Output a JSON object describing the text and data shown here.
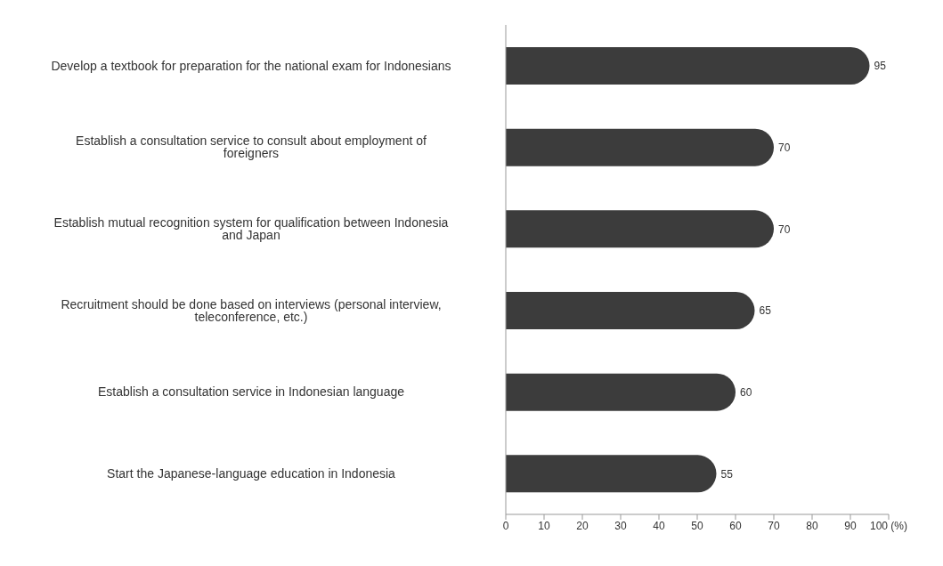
{
  "chart_data": {
    "type": "bar",
    "orientation": "horizontal",
    "categories": [
      "Develop a textbook for preparation for the national exam for Indonesians",
      "Establish a consultation service to consult about employment of foreigners",
      "Establish mutual recognition system for qualification between Indonesia and Japan",
      "Recruitment should be done based on interviews (personal interview, teleconference, etc.)",
      "Establish a consultation service in Indonesian language",
      "Start the Japanese-language education in Indonesia"
    ],
    "values": [
      95,
      70,
      70,
      65,
      60,
      55
    ],
    "color": "#3c3c3c",
    "xlim": [
      0,
      100
    ],
    "xticks": [
      0,
      10,
      20,
      30,
      40,
      50,
      60,
      70,
      80,
      90,
      {
        "value": 100,
        "label": "100 (%)"
      }
    ],
    "data_labels": true,
    "grid": false,
    "legend": false
  }
}
